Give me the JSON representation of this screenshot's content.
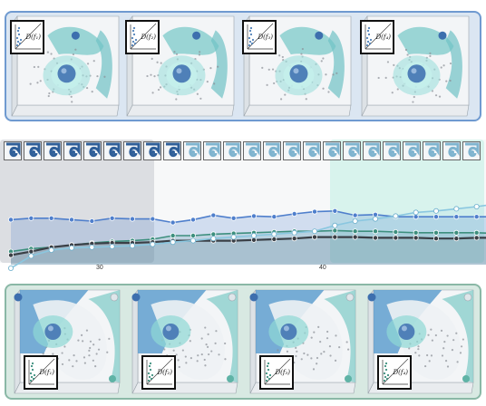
{
  "top_row": {
    "frames": [
      {
        "inset_label": "D(f₁)"
      },
      {
        "inset_label": "D(f₂)"
      },
      {
        "inset_label": "D(f₃)"
      },
      {
        "inset_label": "D(f₄)"
      }
    ]
  },
  "bottom_row": {
    "frames": [
      {
        "inset_label": "D(f₁)"
      },
      {
        "inset_label": "D(f₂)"
      },
      {
        "inset_label": "D(f₃)"
      },
      {
        "inset_label": "D(f₄)"
      }
    ]
  },
  "timeline": {
    "thumbnail_count": 24,
    "tick_labels": [
      "30",
      "40"
    ],
    "selection_left_color": "#a8aeb6",
    "selection_right_color": "#bfeee4"
  },
  "chart_data": {
    "type": "line",
    "x_ticks": [
      30,
      40
    ],
    "x_range": [
      24,
      48
    ],
    "x": [
      24,
      25,
      26,
      27,
      28,
      29,
      30,
      31,
      32,
      33,
      34,
      35,
      36,
      37,
      38,
      39,
      40,
      41,
      42,
      43,
      44,
      45,
      46,
      47,
      48
    ],
    "y_range": [
      0,
      1
    ],
    "series": [
      {
        "color": "#4f7fcc",
        "values": [
          0.62,
          0.64,
          0.64,
          0.62,
          0.6,
          0.64,
          0.63,
          0.63,
          0.58,
          0.62,
          0.68,
          0.64,
          0.67,
          0.66,
          0.7,
          0.73,
          0.74,
          0.68,
          0.69,
          0.66,
          0.66,
          0.66,
          0.66,
          0.66,
          0.66
        ]
      },
      {
        "color": "#3d8f7e",
        "values": [
          0.18,
          0.22,
          0.24,
          0.27,
          0.3,
          0.32,
          0.33,
          0.35,
          0.4,
          0.4,
          0.42,
          0.43,
          0.44,
          0.45,
          0.46,
          0.46,
          0.47,
          0.46,
          0.46,
          0.45,
          0.44,
          0.44,
          0.44,
          0.44,
          0.43
        ]
      },
      {
        "color": "#3a3f46",
        "values": [
          0.13,
          0.18,
          0.24,
          0.27,
          0.29,
          0.3,
          0.3,
          0.31,
          0.33,
          0.33,
          0.33,
          0.33,
          0.34,
          0.35,
          0.36,
          0.38,
          0.38,
          0.38,
          0.37,
          0.37,
          0.37,
          0.36,
          0.36,
          0.37,
          0.37
        ]
      },
      {
        "color": "#8ac7e0",
        "values": [
          -0.05,
          0.12,
          0.2,
          0.23,
          0.24,
          0.25,
          0.26,
          0.28,
          0.31,
          0.33,
          0.36,
          0.38,
          0.4,
          0.42,
          0.44,
          0.46,
          0.54,
          0.6,
          0.63,
          0.67,
          0.72,
          0.74,
          0.77,
          0.8,
          0.84
        ]
      }
    ]
  }
}
